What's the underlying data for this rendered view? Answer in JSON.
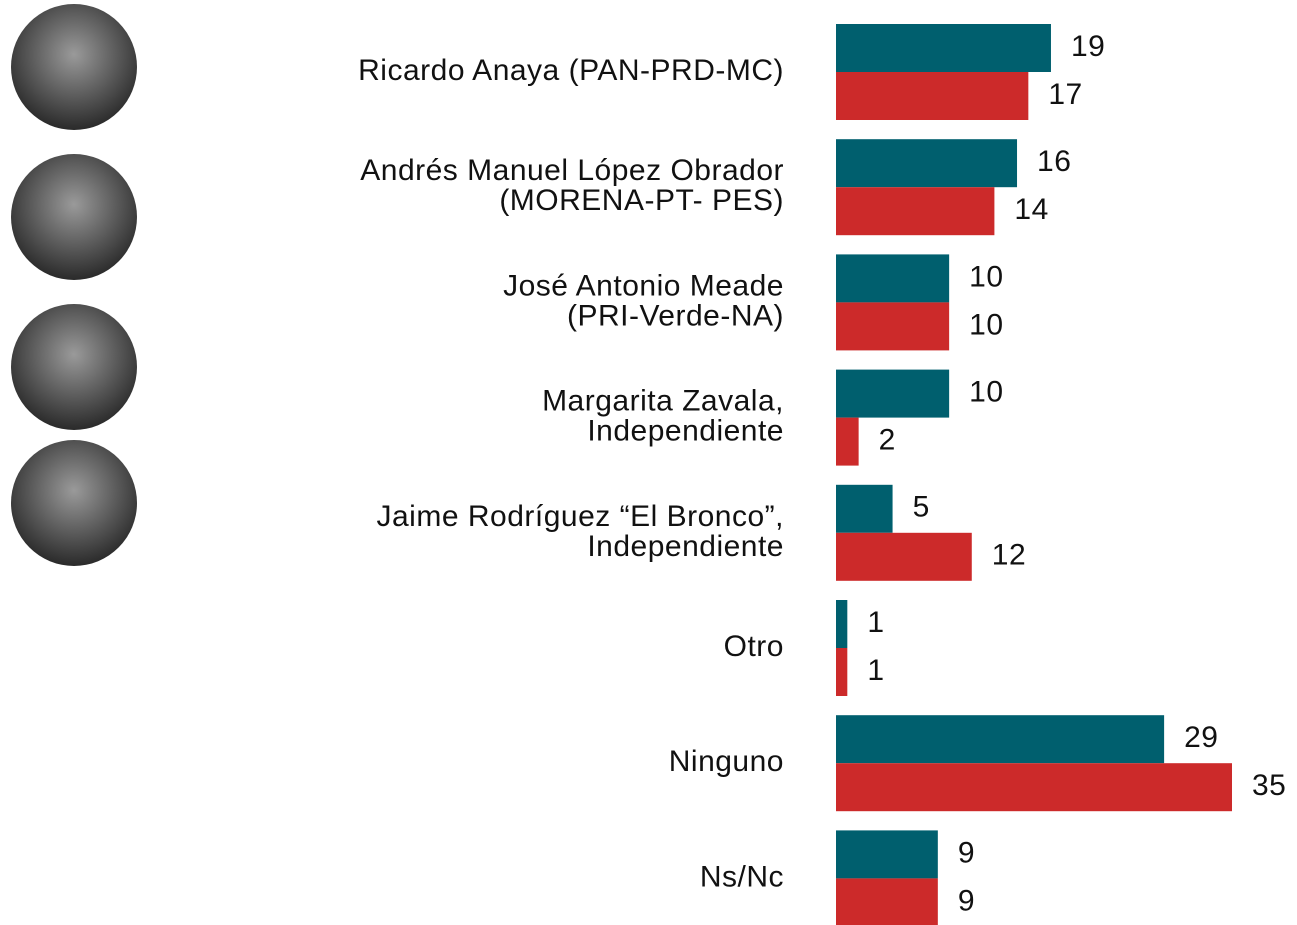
{
  "chart_data": {
    "type": "barh",
    "categories": [
      "Ricardo Anaya (PAN-PRD-MC)",
      "Andrés Manuel López Obrador\n(MORENA-PT- PES)",
      "José Antonio Meade\n(PRI-Verde-NA)",
      "Margarita Zavala,\nIndependiente",
      "Jaime Rodríguez “El Bronco”,\nIndependiente",
      "Otro",
      "Ninguno",
      "Ns/Nc"
    ],
    "series": [
      {
        "color": "#005f6e",
        "values": [
          19,
          16,
          10,
          10,
          5,
          1,
          29,
          9
        ]
      },
      {
        "color": "#cc2a2a",
        "values": [
          17,
          14,
          10,
          2,
          12,
          1,
          35,
          9
        ]
      }
    ],
    "xlim": [
      0,
      35
    ]
  }
}
